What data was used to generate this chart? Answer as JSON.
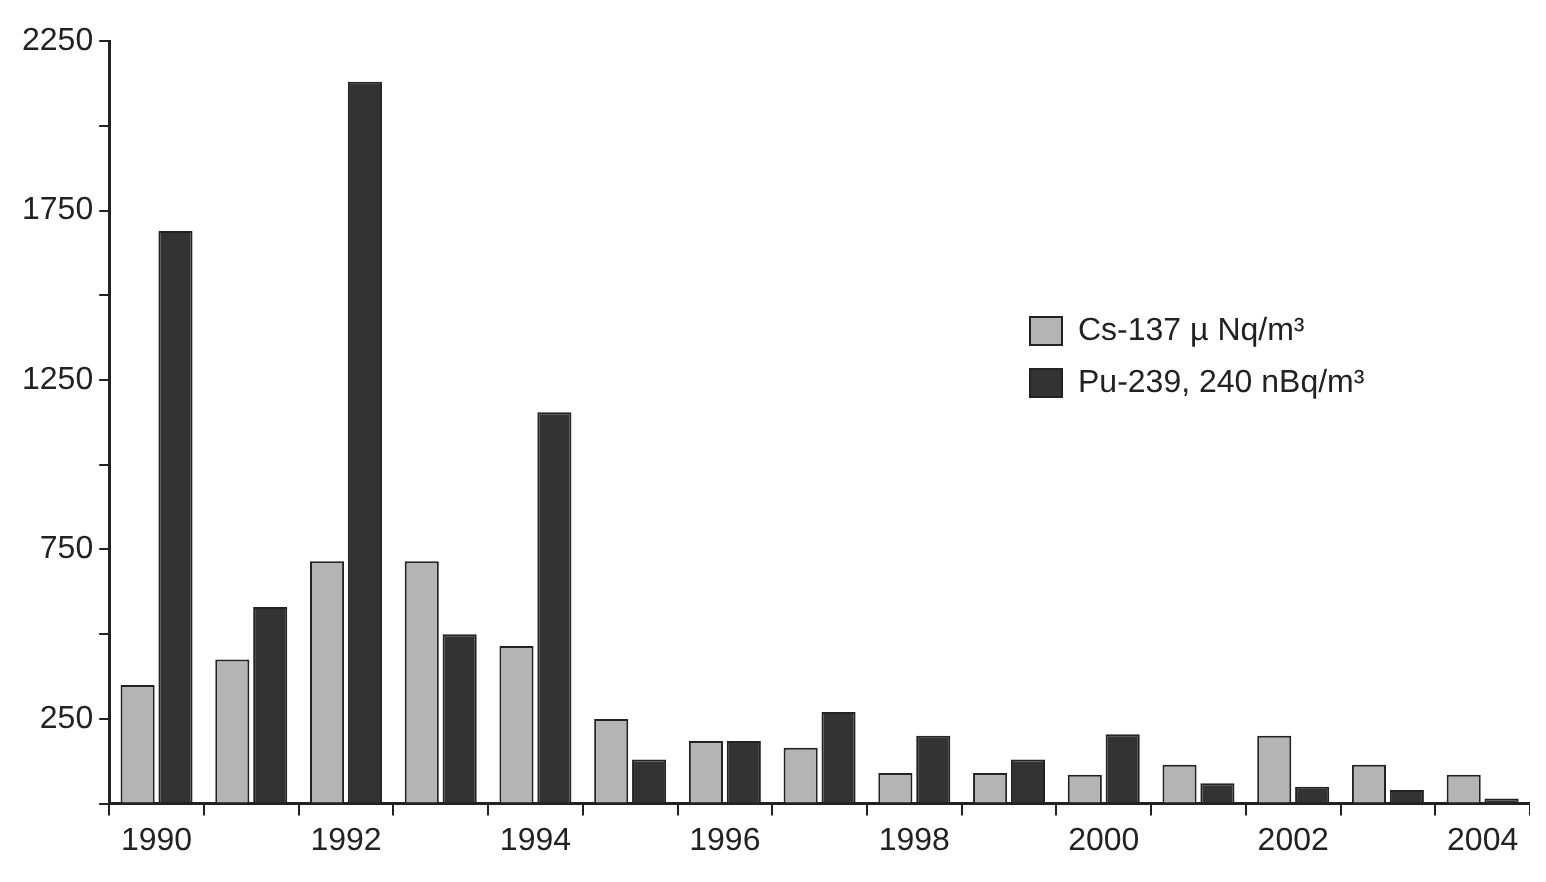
{
  "chart_data": {
    "type": "bar",
    "categories": [
      "1990",
      null,
      "1992",
      null,
      "1994",
      null,
      "1996",
      null,
      "1998",
      null,
      "2000",
      null,
      "2002",
      null,
      "2004"
    ],
    "series": [
      {
        "name": "Cs-137 µ Nq/m³",
        "color": "#b4b4b4",
        "values": [
          350,
          425,
          715,
          715,
          465,
          250,
          185,
          165,
          90,
          90,
          85,
          115,
          200,
          115,
          85
        ]
      },
      {
        "name": "Pu-239, 240 nBq/m³",
        "color": "#333333",
        "values": [
          1690,
          580,
          2130,
          500,
          1155,
          130,
          185,
          270,
          200,
          130,
          205,
          60,
          50,
          40,
          15
        ]
      }
    ],
    "ylim": [
      0,
      2250
    ],
    "yticks": [
      {
        "value": 0,
        "label": null
      },
      250,
      {
        "value": 500,
        "label": null
      },
      750,
      {
        "value": 1000,
        "label": null
      },
      1250,
      {
        "value": 1500,
        "label": null
      },
      1750,
      {
        "value": 2000,
        "label": null
      },
      2250
    ],
    "grid": false,
    "legend": "right"
  }
}
